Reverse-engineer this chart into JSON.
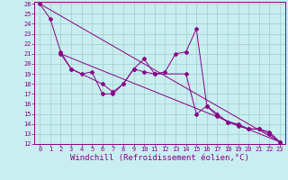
{
  "xlabel": "Windchill (Refroidissement éolien,°C)",
  "xlim": [
    -0.5,
    23.5
  ],
  "ylim": [
    12,
    26.2
  ],
  "xticks": [
    0,
    1,
    2,
    3,
    4,
    5,
    6,
    7,
    8,
    9,
    10,
    11,
    12,
    13,
    14,
    15,
    16,
    17,
    18,
    19,
    20,
    21,
    22,
    23
  ],
  "yticks": [
    12,
    13,
    14,
    15,
    16,
    17,
    18,
    19,
    20,
    21,
    22,
    23,
    24,
    25,
    26
  ],
  "background_color": "#c8eef0",
  "line_color": "#880088",
  "grid_color": "#a0cccc",
  "line1_x": [
    0,
    1,
    2,
    3,
    4,
    5,
    6,
    7,
    8,
    9,
    10,
    11,
    12,
    13,
    14,
    15,
    16,
    17,
    18,
    19,
    20,
    21,
    22,
    23
  ],
  "line1_y": [
    26.0,
    24.5,
    21.2,
    19.5,
    19.0,
    19.2,
    17.0,
    17.0,
    18.0,
    19.5,
    20.5,
    19.0,
    19.2,
    21.0,
    21.2,
    23.5,
    15.8,
    15.0,
    14.2,
    14.0,
    13.5,
    13.5,
    13.0,
    12.2
  ],
  "line2_x": [
    2,
    3,
    6,
    7,
    8,
    9,
    10,
    11,
    14,
    15,
    16,
    17,
    18,
    19,
    20,
    21,
    22,
    23
  ],
  "line2_y": [
    21.0,
    19.5,
    18.0,
    17.2,
    18.0,
    19.5,
    19.2,
    19.0,
    19.0,
    15.0,
    15.8,
    14.8,
    14.2,
    13.8,
    13.5,
    13.5,
    13.2,
    12.2
  ],
  "line3_x": [
    0,
    23
  ],
  "line3_y": [
    26.0,
    12.2
  ],
  "line4_x": [
    2,
    23
  ],
  "line4_y": [
    21.0,
    12.2
  ],
  "tick_fontsize": 5,
  "xlabel_fontsize": 6.5,
  "marker_size": 2.0,
  "marker": "D"
}
